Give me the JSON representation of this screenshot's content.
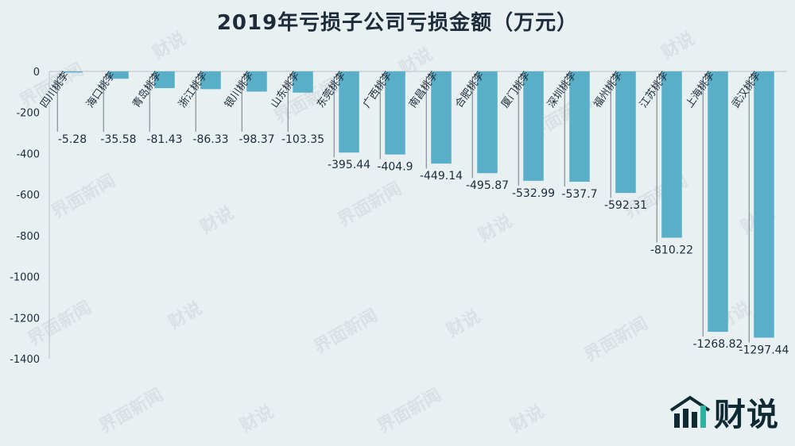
{
  "chart_data": {
    "type": "bar",
    "title": "2019年亏损子公司亏损金额（万元）",
    "categories": [
      "四川桃李",
      "海口桃李",
      "青岛桃李",
      "浙江桃李",
      "银川桃李",
      "山东桃李",
      "东莞桃李",
      "广西桃李",
      "南昌桃李",
      "合肥桃李",
      "厦门桃李",
      "深圳桃李",
      "福州桃李",
      "江苏桃李",
      "上海桃李",
      "武汉桃李"
    ],
    "values": [
      -5.28,
      -35.58,
      -81.43,
      -86.33,
      -98.37,
      -103.35,
      -395.44,
      -404.9,
      -449.14,
      -495.87,
      -532.99,
      -537.7,
      -592.31,
      -810.22,
      -1268.82,
      -1297.44
    ],
    "value_labels": [
      "-5.28",
      "-35.58",
      "-81.43",
      "-86.33",
      "-98.37",
      "-103.35",
      "-395.44",
      "-404.9",
      "-449.14",
      "-495.87",
      "-532.99",
      "-537.7",
      "-592.31",
      "-810.22",
      "-1268.82",
      "-1297.44"
    ],
    "yticks": [
      "0",
      "-200",
      "-400",
      "-600",
      "-800",
      "-1000",
      "-1200",
      "-1400"
    ],
    "ylim": [
      -1400,
      0
    ],
    "xlabel": "",
    "ylabel": "",
    "grid": false,
    "bar_color": "#5aafc8"
  },
  "watermark": {
    "text_cn": "界面新闻",
    "text_brand": "财说"
  },
  "brand": {
    "logo_icon": "bar-chart-logo-icon",
    "text": "财说",
    "color": "#0f2a33"
  }
}
